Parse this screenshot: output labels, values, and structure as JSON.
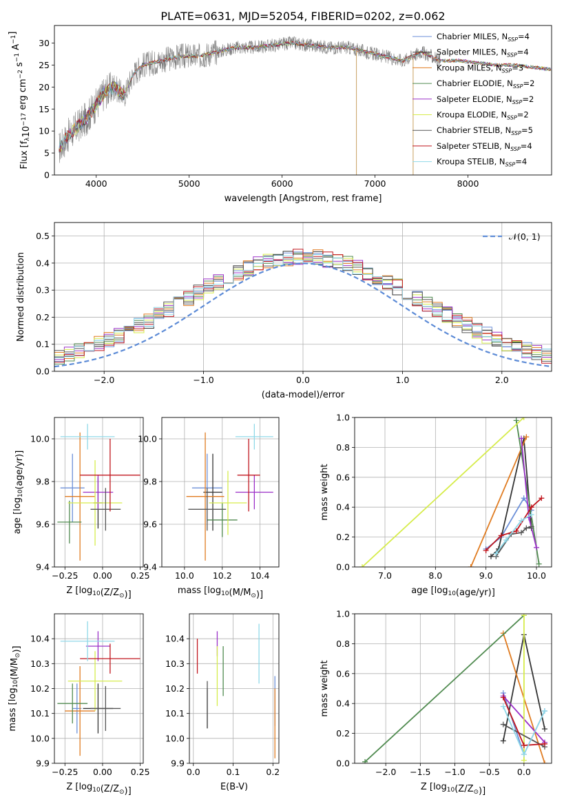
{
  "title": "PLATE=0631, MJD=52054, FIBERID=0202, z=0.062",
  "models": [
    {
      "name": "Chabrier MILES",
      "nssp": "4",
      "color": "#6b8fd8"
    },
    {
      "name": "Salpeter MILES",
      "nssp": "4",
      "color": "#333333"
    },
    {
      "name": "Kroupa MILES",
      "nssp": "3",
      "color": "#e07b20"
    },
    {
      "name": "Chabrier ELODIE",
      "nssp": "2",
      "color": "#4f8a4f"
    },
    {
      "name": "Salpeter ELODIE",
      "nssp": "2",
      "color": "#9b30c8"
    },
    {
      "name": "Kroupa ELODIE",
      "nssp": "2",
      "color": "#d6ec4a"
    },
    {
      "name": "Chabrier STELIB",
      "nssp": "5",
      "color": "#555555"
    },
    {
      "name": "Salpeter STELIB",
      "nssp": "4",
      "color": "#c0141c"
    },
    {
      "name": "Kroupa STELIB",
      "nssp": "4",
      "color": "#8fd8e8"
    }
  ],
  "legend_nssp_prefix": "N",
  "legend_nssp_sub": "SSP",
  "chart_data": [
    {
      "type": "line",
      "xlabel": "wavelength [Angstrom, rest frame]",
      "ylabel": "Flux [f_λ 10^-17 erg cm^-2 s^-1 A^-1]",
      "xlim": [
        3550,
        8900
      ],
      "ylim": [
        0,
        34
      ],
      "xticks": [
        4000,
        5000,
        6000,
        7000,
        8000
      ],
      "yticks": [
        0,
        5,
        10,
        15,
        20,
        25,
        30
      ],
      "grid": false,
      "legend": "top-right",
      "data_series": {
        "name": "data",
        "color": "#808080"
      },
      "spectrum_knots": {
        "x": [
          3600,
          3700,
          3800,
          3900,
          4000,
          4100,
          4200,
          4300,
          4400,
          4500,
          4700,
          4900,
          5100,
          5300,
          5500,
          5700,
          5900,
          6100,
          6300,
          6500,
          6700,
          6900,
          7100,
          7300,
          7500,
          7700,
          7900,
          8100,
          8300,
          8500,
          8700,
          8900
        ],
        "y": [
          6,
          9,
          11,
          13,
          16,
          19,
          20,
          18,
          23,
          25,
          26,
          27,
          27,
          28,
          29,
          29,
          29.5,
          30,
          29.5,
          29,
          29,
          28,
          27,
          26,
          28,
          26,
          26,
          25.5,
          25,
          25,
          24.5,
          24
        ]
      },
      "spikes": [
        {
          "x": 6800,
          "y": 0
        },
        {
          "x": 7410,
          "y": 0
        }
      ]
    },
    {
      "type": "bar",
      "xlabel": "(data-model)/error",
      "ylabel": "Normed distribution",
      "xlim": [
        -2.5,
        2.5
      ],
      "ylim": [
        0,
        0.55
      ],
      "xticks": [
        -2,
        -1,
        0,
        1,
        2
      ],
      "yticks": [
        0,
        0.1,
        0.2,
        0.3,
        0.4,
        0.5
      ],
      "grid": true,
      "bin_width": 0.1,
      "legend": "top-right",
      "legend_label": "𝒩(0, 1)",
      "reference_curve": {
        "type": "normal",
        "mean": 0,
        "sigma": 1,
        "color": "#5b8ad6"
      }
    },
    {
      "type": "scatter",
      "xlabel": "Z [log10(Z/Z☉)]",
      "ylabel": "age [log10(age/yr)]",
      "xlim": [
        -0.32,
        0.27
      ],
      "ylim": [
        9.4,
        10.1
      ],
      "xticks": [
        -0.25,
        0.0,
        0.25
      ],
      "yticks": [
        9.4,
        9.6,
        9.8,
        10.0
      ],
      "grid": true,
      "points": [
        {
          "x": -0.2,
          "y": 9.77,
          "xerr": 0.08,
          "yerr": 0.16
        },
        {
          "x": -0.03,
          "y": 9.7,
          "xerr": 0.03,
          "yerr": 0.12
        },
        {
          "x": -0.15,
          "y": 9.73,
          "xerr": 0.1,
          "yerr": 0.3
        },
        {
          "x": -0.22,
          "y": 9.61,
          "xerr": 0.08,
          "yerr": 0.1
        },
        {
          "x": -0.03,
          "y": 9.75,
          "xerr": 0.1,
          "yerr": 0.08
        },
        {
          "x": -0.05,
          "y": 9.7,
          "xerr": 0.18,
          "yerr": 0.2
        },
        {
          "x": 0.02,
          "y": 9.67,
          "xerr": 0.1,
          "yerr": 0.1
        },
        {
          "x": 0.05,
          "y": 9.83,
          "xerr": 0.2,
          "yerr": 0.17
        },
        {
          "x": -0.1,
          "y": 10.01,
          "xerr": 0.18,
          "yerr": 0.06
        }
      ]
    },
    {
      "type": "scatter",
      "xlabel": "mass [log10(M/M☉)]",
      "ylabel": "",
      "xlim": [
        9.88,
        10.5
      ],
      "ylim": [
        9.4,
        10.1
      ],
      "xticks": [
        10.0,
        10.2,
        10.4
      ],
      "yticks": [
        9.4,
        9.6,
        9.8,
        10.0
      ],
      "grid": true,
      "points": [
        {
          "x": 10.12,
          "y": 9.77,
          "xerr": 0.08,
          "yerr": 0.16
        },
        {
          "x": 10.15,
          "y": 9.75,
          "xerr": 0.05,
          "yerr": 0.18
        },
        {
          "x": 10.11,
          "y": 9.73,
          "xerr": 0.1,
          "yerr": 0.3
        },
        {
          "x": 10.2,
          "y": 9.62,
          "xerr": 0.08,
          "yerr": 0.08
        },
        {
          "x": 10.37,
          "y": 9.75,
          "xerr": 0.1,
          "yerr": 0.08
        },
        {
          "x": 10.23,
          "y": 9.7,
          "xerr": 0.1,
          "yerr": 0.15
        },
        {
          "x": 10.12,
          "y": 9.67,
          "xerr": 0.1,
          "yerr": 0.1
        },
        {
          "x": 10.34,
          "y": 9.83,
          "xerr": 0.06,
          "yerr": 0.17
        },
        {
          "x": 10.37,
          "y": 10.01,
          "xerr": 0.1,
          "yerr": 0.06
        }
      ]
    },
    {
      "type": "line",
      "xlabel": "age [log10(age/yr)]",
      "ylabel": "mass weight",
      "xlim": [
        6.4,
        10.3
      ],
      "ylim": [
        0,
        1
      ],
      "xticks": [
        7,
        8,
        9,
        10
      ],
      "yticks": [
        0,
        0.2,
        0.4,
        0.6,
        0.8,
        1.0
      ],
      "grid": true,
      "series": [
        {
          "x": [
            9.0,
            9.3,
            9.75,
            9.9
          ],
          "y": [
            0.12,
            0.2,
            0.46,
            0.38
          ]
        },
        {
          "x": [
            9.1,
            9.25,
            9.75,
            9.9
          ],
          "y": [
            0.07,
            0.12,
            0.86,
            0.26
          ]
        },
        {
          "x": [
            8.7,
            9.8
          ],
          "y": [
            0.0,
            0.87
          ]
        },
        {
          "x": [
            9.6,
            10.05
          ],
          "y": [
            0.98,
            0.02
          ]
        },
        {
          "x": [
            9.7,
            9.85,
            10.0
          ],
          "y": [
            0.86,
            0.33,
            0.13
          ]
        },
        {
          "x": [
            6.55,
            9.75
          ],
          "y": [
            0.0,
            1.0
          ]
        },
        {
          "x": [
            9.2,
            9.5,
            9.7,
            9.8,
            9.9
          ],
          "y": [
            0.07,
            0.22,
            0.23,
            0.26,
            0.27
          ]
        },
        {
          "x": [
            9.0,
            9.3,
            9.6,
            9.9,
            10.1
          ],
          "y": [
            0.11,
            0.21,
            0.24,
            0.4,
            0.46
          ]
        },
        {
          "x": [
            9.2,
            9.4,
            9.7,
            9.9
          ],
          "y": [
            0.09,
            0.18,
            0.31,
            0.35
          ]
        }
      ]
    },
    {
      "type": "scatter",
      "xlabel": "Z [log10(Z/Z☉)]",
      "ylabel": "mass [log10(M/M☉)]",
      "xlim": [
        -0.32,
        0.27
      ],
      "ylim": [
        9.9,
        10.5
      ],
      "xticks": [
        -0.25,
        0.0,
        0.25
      ],
      "yticks": [
        9.9,
        10.0,
        10.1,
        10.2,
        10.3,
        10.4
      ],
      "grid": true,
      "points": [
        {
          "x": -0.17,
          "y": 10.12,
          "xerr": 0.03,
          "yerr": 0.1
        },
        {
          "x": -0.03,
          "y": 10.12,
          "xerr": 0.1,
          "yerr": 0.1
        },
        {
          "x": -0.15,
          "y": 10.11,
          "xerr": 0.1,
          "yerr": 0.18
        },
        {
          "x": -0.2,
          "y": 10.14,
          "xerr": 0.1,
          "yerr": 0.08
        },
        {
          "x": -0.03,
          "y": 10.37,
          "xerr": 0.08,
          "yerr": 0.06
        },
        {
          "x": -0.05,
          "y": 10.23,
          "xerr": 0.18,
          "yerr": 0.12
        },
        {
          "x": 0.02,
          "y": 10.12,
          "xerr": 0.1,
          "yerr": 0.09
        },
        {
          "x": 0.05,
          "y": 10.32,
          "xerr": 0.2,
          "yerr": 0.06
        },
        {
          "x": -0.1,
          "y": 10.39,
          "xerr": 0.18,
          "yerr": 0.08
        }
      ]
    },
    {
      "type": "scatter",
      "xlabel": "E(B-V)",
      "ylabel": "",
      "xlim": [
        -0.01,
        0.215
      ],
      "ylim": [
        9.9,
        10.5
      ],
      "xticks": [
        0.0,
        0.1,
        0.2
      ],
      "yticks": [
        9.9,
        10.0,
        10.1,
        10.2,
        10.3,
        10.4
      ],
      "grid": true,
      "points": [
        {
          "x": 0.205,
          "y": 10.15,
          "yerr": 0.1
        },
        {
          "x": 0.035,
          "y": 10.12,
          "yerr": 0.08
        },
        {
          "x": 0.205,
          "y": 10.06,
          "yerr": 0.14
        },
        {
          "x": 0.075,
          "y": 10.27,
          "yerr": 0.1
        },
        {
          "x": 0.06,
          "y": 10.38,
          "yerr": 0.05
        },
        {
          "x": 0.06,
          "y": 10.25,
          "yerr": 0.12
        },
        {
          "x": 0.035,
          "y": 10.14,
          "yerr": 0.09
        },
        {
          "x": 0.01,
          "y": 10.33,
          "yerr": 0.07
        },
        {
          "x": 0.165,
          "y": 10.34,
          "yerr": 0.12
        }
      ]
    },
    {
      "type": "line",
      "xlabel": "Z [log10(Z/Z☉)]",
      "ylabel": "mass weight",
      "xlim": [
        -2.45,
        0.4
      ],
      "ylim": [
        0,
        1
      ],
      "xticks": [
        -2.0,
        -1.5,
        -1.0,
        -0.5,
        0.0
      ],
      "yticks": [
        0,
        0.2,
        0.4,
        0.6,
        0.8,
        1.0
      ],
      "grid": true,
      "series": [
        {
          "x": [
            -0.3,
            0.0,
            0.3
          ],
          "y": [
            0.47,
            0.06,
            0.35
          ]
        },
        {
          "x": [
            -0.3,
            0.0,
            0.3
          ],
          "y": [
            0.15,
            0.86,
            0.23
          ]
        },
        {
          "x": [
            -0.3,
            0.3
          ],
          "y": [
            0.87,
            0.0
          ]
        },
        {
          "x": [
            -2.3,
            0.0
          ],
          "y": [
            0.01,
            0.99
          ]
        },
        {
          "x": [
            -0.3,
            0.3
          ],
          "y": [
            0.45,
            0.14
          ]
        },
        {
          "x": [
            0.0,
            0.0
          ],
          "y": [
            0.99,
            0.02
          ]
        },
        {
          "x": [
            -0.3,
            0.3
          ],
          "y": [
            0.26,
            0.11
          ]
        },
        {
          "x": [
            -0.3,
            0.0,
            0.3
          ],
          "y": [
            0.44,
            0.12,
            0.13
          ]
        },
        {
          "x": [
            -0.3,
            0.0,
            0.3
          ],
          "y": [
            0.38,
            0.06,
            0.35
          ]
        }
      ]
    }
  ]
}
